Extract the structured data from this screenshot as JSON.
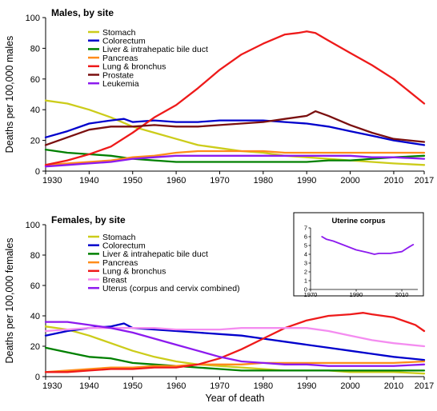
{
  "chart_data": [
    {
      "type": "line",
      "title": "Males, by site",
      "ylabel": "Deaths per 100,000 males",
      "xlabel": "",
      "xlim": [
        1930,
        2017
      ],
      "ylim": [
        0,
        100
      ],
      "xticks": [
        "1930",
        "1940",
        "1950",
        "1960",
        "1970",
        "1980",
        "1990",
        "2000",
        "2010",
        "2017"
      ],
      "yticks": [
        "0",
        "20",
        "40",
        "60",
        "80",
        "100"
      ],
      "legend_position": "top-left",
      "series": [
        {
          "name": "Stomach",
          "color": "#cccc1a",
          "x": [
            1930,
            1935,
            1940,
            1945,
            1950,
            1955,
            1960,
            1965,
            1970,
            1975,
            1980,
            1985,
            1990,
            1995,
            2000,
            2005,
            2010,
            2017
          ],
          "y": [
            46,
            44,
            40,
            35,
            29,
            25,
            21,
            17,
            15,
            13,
            12,
            10,
            9,
            8,
            7,
            6,
            5,
            4
          ]
        },
        {
          "name": "Colorectum",
          "color": "#0000cc",
          "x": [
            1930,
            1935,
            1940,
            1945,
            1948,
            1950,
            1955,
            1960,
            1965,
            1970,
            1975,
            1980,
            1985,
            1990,
            1995,
            2000,
            2005,
            2010,
            2017
          ],
          "y": [
            22,
            26,
            31,
            33,
            34,
            32,
            33,
            32,
            32,
            33,
            33,
            33,
            32,
            31,
            29,
            26,
            23,
            20,
            17
          ]
        },
        {
          "name": "Liver & intrahepatic bile duct",
          "color": "#008000",
          "x": [
            1930,
            1935,
            1940,
            1945,
            1950,
            1955,
            1960,
            1965,
            1970,
            1975,
            1980,
            1985,
            1990,
            1995,
            2000,
            2005,
            2010,
            2017
          ],
          "y": [
            14,
            12,
            11,
            10,
            8,
            7,
            6,
            6,
            6,
            6,
            6,
            6,
            6,
            7,
            7,
            8,
            9,
            10
          ]
        },
        {
          "name": "Pancreas",
          "color": "#ff8c1a",
          "x": [
            1930,
            1935,
            1940,
            1945,
            1950,
            1955,
            1960,
            1965,
            1970,
            1975,
            1980,
            1985,
            1990,
            1995,
            2000,
            2005,
            2010,
            2017
          ],
          "y": [
            4,
            5,
            6,
            7,
            9,
            10,
            12,
            13,
            13,
            13,
            13,
            12,
            12,
            12,
            12,
            12,
            12,
            12
          ]
        },
        {
          "name": "Lung & bronchus",
          "color": "#ee1a1a",
          "x": [
            1930,
            1935,
            1940,
            1945,
            1950,
            1955,
            1960,
            1965,
            1970,
            1975,
            1980,
            1985,
            1988,
            1990,
            1992,
            1995,
            2000,
            2005,
            2010,
            2017
          ],
          "y": [
            4,
            7,
            11,
            16,
            25,
            35,
            43,
            54,
            66,
            76,
            83,
            89,
            90,
            91,
            90,
            85,
            77,
            69,
            60,
            44
          ]
        },
        {
          "name": "Prostate",
          "color": "#7a0f0f",
          "x": [
            1930,
            1935,
            1940,
            1945,
            1950,
            1955,
            1960,
            1965,
            1970,
            1975,
            1980,
            1985,
            1990,
            1992,
            1995,
            2000,
            2005,
            2010,
            2017
          ],
          "y": [
            17,
            22,
            27,
            29,
            29,
            30,
            29,
            29,
            30,
            31,
            32,
            34,
            36,
            39,
            36,
            30,
            25,
            21,
            19
          ]
        },
        {
          "name": "Leukemia",
          "color": "#8c1aee",
          "x": [
            1930,
            1935,
            1940,
            1945,
            1950,
            1955,
            1960,
            1965,
            1970,
            1975,
            1980,
            1985,
            1990,
            1995,
            2000,
            2005,
            2010,
            2017
          ],
          "y": [
            3,
            4,
            5,
            6,
            8,
            9,
            10,
            10,
            10,
            10,
            10,
            10,
            10,
            10,
            10,
            9,
            9,
            8
          ]
        }
      ]
    },
    {
      "type": "line",
      "title": "Females, by site",
      "ylabel": "Deaths per 100,000 females",
      "xlabel": "Year of death",
      "xlim": [
        1930,
        2017
      ],
      "ylim": [
        0,
        100
      ],
      "xticks": [
        "1930",
        "1940",
        "1950",
        "1960",
        "1970",
        "1980",
        "1990",
        "2000",
        "2010",
        "2017"
      ],
      "yticks": [
        "0",
        "20",
        "40",
        "60",
        "80",
        "100"
      ],
      "legend_position": "top-left",
      "series": [
        {
          "name": "Stomach",
          "color": "#cccc1a",
          "x": [
            1930,
            1935,
            1940,
            1945,
            1950,
            1955,
            1960,
            1965,
            1970,
            1975,
            1980,
            1985,
            1990,
            1995,
            2000,
            2005,
            2010,
            2017
          ],
          "y": [
            33,
            31,
            27,
            22,
            17,
            13,
            10,
            8,
            7,
            6,
            5,
            4,
            4,
            4,
            3,
            3,
            3,
            2
          ]
        },
        {
          "name": "Colorectum",
          "color": "#0000cc",
          "x": [
            1930,
            1935,
            1940,
            1945,
            1948,
            1950,
            1955,
            1960,
            1965,
            1970,
            1975,
            1980,
            1985,
            1990,
            1995,
            2000,
            2005,
            2010,
            2017
          ],
          "y": [
            27,
            30,
            32,
            33,
            35,
            32,
            31,
            30,
            29,
            28,
            27,
            25,
            23,
            21,
            19,
            17,
            15,
            13,
            11
          ]
        },
        {
          "name": "Liver & intrahepatic bile duct",
          "color": "#008000",
          "x": [
            1930,
            1935,
            1940,
            1945,
            1950,
            1955,
            1960,
            1965,
            1970,
            1975,
            1980,
            1985,
            1990,
            1995,
            2000,
            2005,
            2010,
            2017
          ],
          "y": [
            19,
            16,
            13,
            12,
            9,
            8,
            7,
            6,
            5,
            4,
            4,
            4,
            4,
            4,
            4,
            4,
            4,
            4
          ]
        },
        {
          "name": "Pancreas",
          "color": "#ff8c1a",
          "x": [
            1930,
            1935,
            1940,
            1945,
            1950,
            1955,
            1960,
            1965,
            1970,
            1975,
            1980,
            1985,
            1990,
            1995,
            2000,
            2005,
            2010,
            2017
          ],
          "y": [
            3,
            4,
            5,
            6,
            6,
            7,
            7,
            8,
            8,
            8,
            9,
            9,
            9,
            9,
            9,
            9,
            9,
            10
          ]
        },
        {
          "name": "Lung & bronchus",
          "color": "#ee1a1a",
          "x": [
            1930,
            1935,
            1940,
            1945,
            1950,
            1955,
            1960,
            1965,
            1970,
            1975,
            1980,
            1985,
            1990,
            1995,
            2000,
            2003,
            2005,
            2010,
            2015,
            2017
          ],
          "y": [
            3,
            3,
            4,
            5,
            5,
            6,
            6,
            8,
            12,
            18,
            25,
            32,
            37,
            40,
            41,
            42,
            41,
            39,
            34,
            30
          ]
        },
        {
          "name": "Breast",
          "color": "#f48cf0",
          "x": [
            1930,
            1935,
            1940,
            1945,
            1950,
            1955,
            1960,
            1965,
            1970,
            1975,
            1980,
            1985,
            1990,
            1995,
            2000,
            2005,
            2010,
            2017
          ],
          "y": [
            30,
            31,
            32,
            32,
            32,
            32,
            31,
            31,
            31,
            32,
            32,
            32,
            32,
            30,
            27,
            24,
            22,
            20
          ]
        },
        {
          "name": "Uterus (corpus and cervix combined)",
          "color": "#8c1aee",
          "x": [
            1930,
            1935,
            1940,
            1945,
            1950,
            1955,
            1960,
            1965,
            1970,
            1975,
            1980,
            1985,
            1990,
            1995,
            2000,
            2005,
            2010,
            2017
          ],
          "y": [
            36,
            36,
            34,
            32,
            29,
            25,
            21,
            17,
            13,
            10,
            9,
            8,
            8,
            7,
            7,
            7,
            7,
            8
          ]
        }
      ]
    },
    {
      "type": "line",
      "title": "Uterine corpus",
      "xlabel": "",
      "ylabel": "",
      "xlim": [
        1970,
        2017
      ],
      "ylim": [
        0,
        7
      ],
      "xticks": [
        "1970",
        "1990",
        "2010"
      ],
      "yticks": [
        "0",
        "1",
        "2",
        "3",
        "4",
        "5",
        "6",
        "7"
      ],
      "series": [
        {
          "name": "",
          "color": "#8c1aee",
          "x": [
            1975,
            1977,
            1980,
            1985,
            1990,
            1995,
            1998,
            2000,
            2005,
            2010,
            2013,
            2015
          ],
          "y": [
            6.0,
            5.7,
            5.5,
            5.0,
            4.5,
            4.2,
            4.0,
            4.1,
            4.1,
            4.3,
            4.8,
            5.1
          ]
        }
      ]
    }
  ]
}
